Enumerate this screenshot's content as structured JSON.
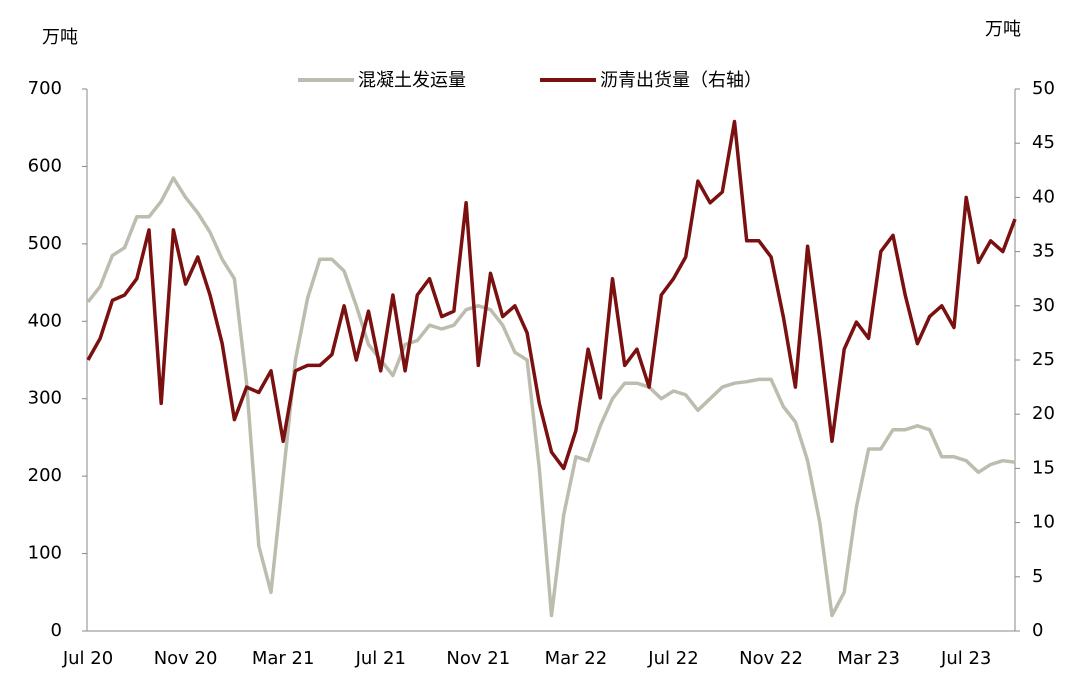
{
  "chart_data": {
    "type": "line",
    "y_unit": "万吨",
    "y2_unit": "万吨",
    "categories": [
      "Jul 20",
      null,
      null,
      null,
      null,
      null,
      null,
      null,
      "Nov 20",
      null,
      null,
      null,
      null,
      null,
      null,
      null,
      "Mar 21",
      null,
      null,
      null,
      null,
      null,
      null,
      null,
      "Jul 21",
      null,
      null,
      null,
      null,
      null,
      null,
      null,
      "Nov 21",
      null,
      null,
      null,
      null,
      null,
      null,
      null,
      "Mar 22",
      null,
      null,
      null,
      null,
      null,
      null,
      null,
      "Jul 22",
      null,
      null,
      null,
      null,
      null,
      null,
      null,
      "Nov 22",
      null,
      null,
      null,
      null,
      null,
      null,
      null,
      "Mar 23",
      null,
      null,
      null,
      null,
      null,
      null,
      null,
      "Jul 23",
      null,
      null,
      null,
      null
    ],
    "series": [
      {
        "name": "混凝土发运量",
        "color": "#bdbdaf",
        "axis": "y",
        "values": [
          425,
          445,
          485,
          495,
          535,
          535,
          555,
          585,
          560,
          540,
          515,
          480,
          455,
          320,
          110,
          50,
          200,
          350,
          430,
          480,
          480,
          465,
          420,
          370,
          350,
          330,
          370,
          375,
          395,
          390,
          395,
          415,
          420,
          415,
          395,
          360,
          350,
          210,
          20,
          150,
          225,
          220,
          265,
          300,
          320,
          320,
          315,
          300,
          310,
          305,
          285,
          300,
          315,
          320,
          322,
          325,
          325,
          290,
          270,
          220,
          140,
          20,
          50,
          160,
          235,
          235,
          260,
          260,
          265,
          260,
          225,
          225,
          220,
          205,
          215,
          220,
          218
        ]
      },
      {
        "name": "沥青出货量（右轴）",
        "color": "#7a1010",
        "axis": "y2",
        "values": [
          25,
          27,
          30.5,
          31,
          32.5,
          37,
          21,
          37,
          32,
          34.5,
          31,
          26.5,
          19.5,
          22.5,
          22,
          24,
          17.5,
          24,
          24.5,
          24.5,
          25.5,
          30,
          25,
          29.5,
          24,
          31,
          24,
          31,
          32.5,
          29,
          29.5,
          39.5,
          24.5,
          33,
          29,
          30,
          27.5,
          21,
          16.5,
          15,
          18.5,
          26,
          21.5,
          32.5,
          24.5,
          26,
          22.5,
          31,
          32.5,
          34.5,
          41.5,
          39.5,
          40.5,
          47,
          36,
          36,
          34.5,
          29,
          22.5,
          35.5,
          27,
          17.5,
          26,
          28.5,
          27,
          35,
          36.5,
          31,
          26.5,
          29,
          30,
          28,
          40,
          34,
          36,
          35,
          38
        ]
      }
    ],
    "ylim": [
      0,
      700
    ],
    "yticks": [
      0,
      100,
      200,
      300,
      400,
      500,
      600,
      700
    ],
    "y2lim": [
      0,
      50
    ],
    "y2ticks": [
      0,
      5,
      10,
      15,
      20,
      25,
      30,
      35,
      40,
      45,
      50
    ],
    "grid": false,
    "legend": "top"
  }
}
